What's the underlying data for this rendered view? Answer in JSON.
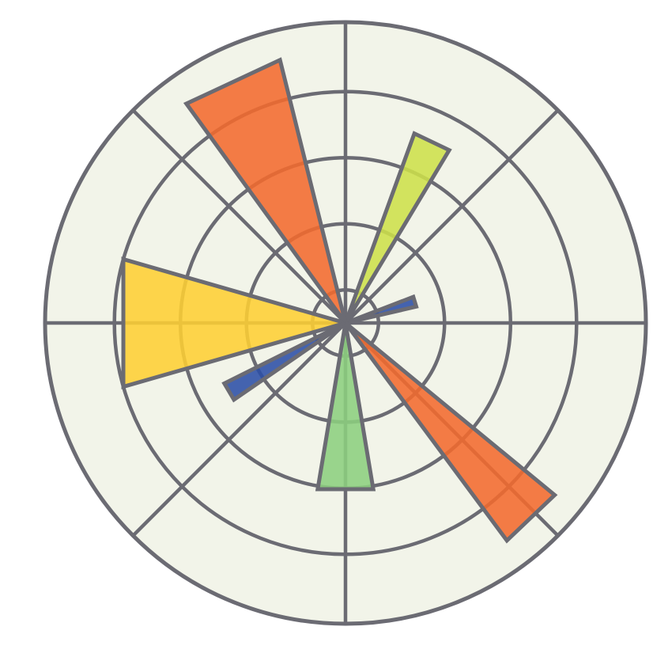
{
  "chart_data": {
    "type": "polar-bar",
    "title": "",
    "r_grid": [
      1,
      3,
      5,
      7
    ],
    "r_max": 9.1,
    "theta_grid_deg": [
      0,
      45,
      90,
      135,
      180,
      225,
      270,
      315
    ],
    "grid": true,
    "legend": "none",
    "colors": {
      "background": "#f2f4e9",
      "grid": "#6b6b73",
      "edge": "#6b6b73"
    },
    "bars": [
      {
        "theta_deg": 17,
        "width_deg": 8,
        "r": 2.2,
        "color": "#2b4ea6"
      },
      {
        "theta_deg": 64.5,
        "width_deg": 11,
        "r": 6.1,
        "color": "#cde04a"
      },
      {
        "theta_deg": 115,
        "width_deg": 22,
        "r": 8.2,
        "color": "#f26a2e"
      },
      {
        "theta_deg": 180,
        "width_deg": 32,
        "r": 7.0,
        "color": "#fecf33"
      },
      {
        "theta_deg": 210.5,
        "width_deg": 8,
        "r": 4.1,
        "color": "#2b4ea6"
      },
      {
        "theta_deg": 270,
        "width_deg": 19,
        "r": 5.1,
        "color": "#8ccf7e"
      },
      {
        "theta_deg": 313.6,
        "width_deg": 14,
        "r": 8.2,
        "color": "#f26a2e"
      }
    ]
  }
}
